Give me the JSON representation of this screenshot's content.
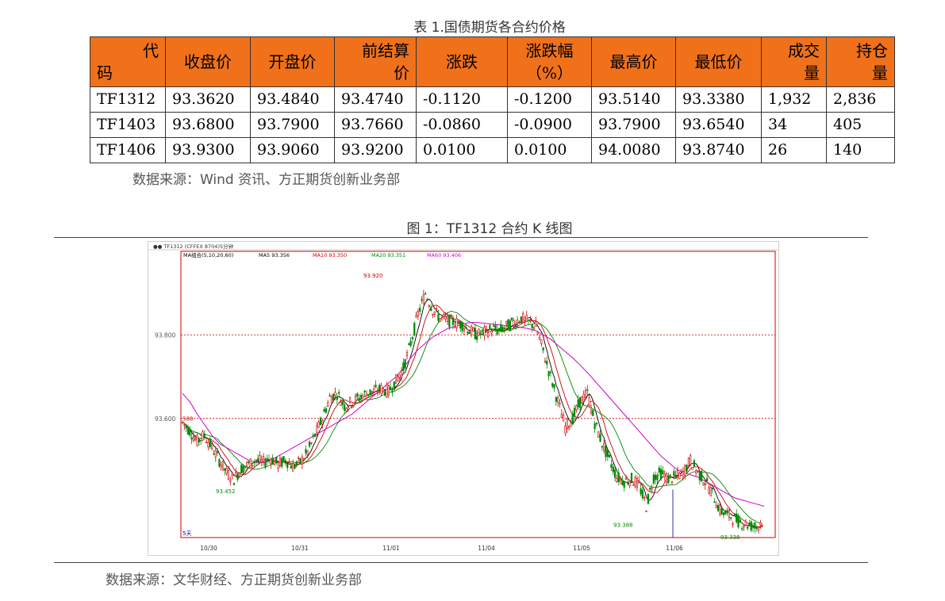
{
  "table": {
    "title": "表 1.国债期货各合约价格",
    "headers": [
      {
        "l1": "代",
        "l2": "码",
        "split": true
      },
      {
        "l1": "收盘价",
        "l2": "",
        "split": false
      },
      {
        "l1": "开盘价",
        "l2": "",
        "split": false
      },
      {
        "l1": "前结算",
        "l2": "价",
        "split": true
      },
      {
        "l1": "涨跌",
        "l2": "",
        "split": false
      },
      {
        "l1": "涨跌幅",
        "l2": "（%）",
        "split": true
      },
      {
        "l1": "最高价",
        "l2": "",
        "split": false
      },
      {
        "l1": "最低价",
        "l2": "",
        "split": false
      },
      {
        "l1": "成交",
        "l2": "量",
        "split": true
      },
      {
        "l1": "持仓",
        "l2": "量",
        "split": true
      }
    ],
    "rows": [
      [
        "TF1312",
        "93.3620",
        "93.4840",
        "93.4740",
        "-0.1120",
        "-0.1200",
        "93.5140",
        "93.3380",
        "1,932",
        "2,836"
      ],
      [
        "TF1403",
        "93.6800",
        "93.7900",
        "93.7660",
        "-0.0860",
        "-0.0900",
        "93.7900",
        "93.6540",
        "34",
        "405"
      ],
      [
        "TF1406",
        "93.9300",
        "93.9060",
        "93.9200",
        "0.0100",
        "0.0100",
        "94.0080",
        "93.8740",
        "26",
        "140"
      ]
    ],
    "source": "数据来源：Wind 资讯、方正期货创新业务部"
  },
  "figure": {
    "title": "图 1：TF1312 合约 K 线图",
    "source": "数据来源：文华财经、方正期货创新业务部"
  },
  "chart_data": {
    "type": "candlestick",
    "header": "TF1312  (CFFEX 8704)5分钟",
    "ma_legend": [
      {
        "label": "MA组合(5,10,20,60)",
        "color": "#000000"
      },
      {
        "label": "MA5 93.356",
        "color": "#000000"
      },
      {
        "label": "MA10 93.350",
        "color": "#cc0000"
      },
      {
        "label": "MA20 93.351",
        "color": "#008800"
      },
      {
        "label": "MA60 93.406",
        "color": "#cc00cc"
      }
    ],
    "y_ticks": [
      93.8,
      93.6
    ],
    "y_tick_labels": [
      "93.800",
      "93.600"
    ],
    "ylim": [
      93.315,
      94.0
    ],
    "x_labels": [
      "10/30",
      "10/31",
      "11/01",
      "11/04",
      "11/05",
      "11/06"
    ],
    "annotations": [
      "93.452",
      "93.920",
      "93.388",
      "93.338"
    ],
    "left_partial_label": "580",
    "period_label": "5天",
    "colors": {
      "up": "#cc0000",
      "down": "#008800",
      "grid": "#cc0000",
      "ma5": "#000000",
      "ma10": "#cc0000",
      "ma20": "#008800",
      "ma60": "#cc00cc"
    },
    "close_path": [
      93.59,
      93.57,
      93.545,
      93.56,
      93.53,
      93.5,
      93.47,
      93.455,
      93.48,
      93.49,
      93.5,
      93.495,
      93.505,
      93.49,
      93.5,
      93.485,
      93.495,
      93.52,
      93.56,
      93.6,
      93.65,
      93.66,
      93.63,
      93.64,
      93.65,
      93.66,
      93.665,
      93.67,
      93.665,
      93.69,
      93.72,
      93.78,
      93.85,
      93.9,
      93.86,
      93.84,
      93.835,
      93.83,
      93.825,
      93.81,
      93.8,
      93.805,
      93.815,
      93.81,
      93.82,
      93.83,
      93.84,
      93.83,
      93.82,
      93.76,
      93.7,
      93.64,
      93.58,
      93.6,
      93.64,
      93.66,
      93.59,
      93.54,
      93.5,
      93.46,
      93.45,
      93.455,
      93.44,
      93.39,
      93.46,
      93.47,
      93.455,
      93.46,
      93.47,
      93.5,
      93.47,
      93.45,
      93.42,
      93.38,
      93.37,
      93.36,
      93.35,
      93.345,
      93.34,
      93.36
    ],
    "ma60_path": [
      93.66,
      93.64,
      93.61,
      93.585,
      93.56,
      93.54,
      93.53,
      93.52,
      93.51,
      93.5,
      93.495,
      93.495,
      93.5,
      93.51,
      93.52,
      93.53,
      93.54,
      93.55,
      93.56,
      93.57,
      93.58,
      93.59,
      93.6,
      93.61,
      93.625,
      93.64,
      93.655,
      93.67,
      93.685,
      93.7,
      93.72,
      93.745,
      93.765,
      93.78,
      93.795,
      93.805,
      93.815,
      93.82,
      93.825,
      93.83,
      93.83,
      93.828,
      93.826,
      93.824,
      93.822,
      93.82,
      93.818,
      93.815,
      93.81,
      93.8,
      93.79,
      93.775,
      93.76,
      93.745,
      93.728,
      93.71,
      93.69,
      93.67,
      93.65,
      93.63,
      93.61,
      93.59,
      93.57,
      93.55,
      93.53,
      93.51,
      93.495,
      93.48,
      93.47,
      93.465,
      93.46,
      93.45,
      93.44,
      93.43,
      93.42,
      93.41,
      93.405,
      93.4,
      93.395,
      93.39
    ]
  }
}
